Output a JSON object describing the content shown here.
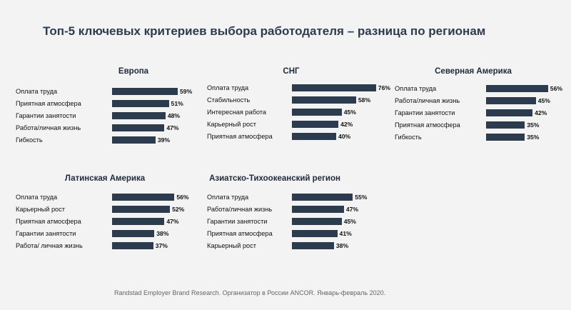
{
  "title": "Топ-5 ключевых критериев выбора работодателя – разница по регионам",
  "footer": "Randstad Employer Brand Research. Организатор в России ANCOR. Январь-февраль 2020.",
  "chart_data": [
    {
      "type": "bar",
      "title": "Европа",
      "categories": [
        "Оплата труда",
        "Приятная атмосфера",
        "Гарантии занятости",
        "Работа/личная жизнь",
        "Гибкость"
      ],
      "values": [
        59,
        51,
        48,
        47,
        39
      ],
      "value_labels": [
        "59%",
        "51%",
        "48%",
        "47%",
        "39%"
      ],
      "unit": "%",
      "orientation": "horizontal"
    },
    {
      "type": "bar",
      "title": "СНГ",
      "categories": [
        "Оплата труда",
        "Стабильность",
        "Интересная работа",
        "Карьерный рост",
        "Приятная атмосфера"
      ],
      "values": [
        76,
        58,
        45,
        42,
        40
      ],
      "value_labels": [
        "76%",
        "58%",
        "45%",
        "42%",
        "40%"
      ],
      "unit": "%",
      "orientation": "horizontal"
    },
    {
      "type": "bar",
      "title": "Северная Америка",
      "categories": [
        "Оплата труда",
        "Работа/личная жизнь",
        "Гарантии занятости",
        "Приятная атмосфера",
        "Гибкость"
      ],
      "values": [
        56,
        45,
        42,
        35,
        35
      ],
      "value_labels": [
        "56%",
        "45%",
        "42%",
        "35%",
        "35%"
      ],
      "unit": "%",
      "orientation": "horizontal"
    },
    {
      "type": "bar",
      "title": "Латинская Америка",
      "categories": [
        "Оплата труда",
        "Карьерный рост",
        "Приятная атмосфера",
        "Гарантии занятости",
        "Работа/ личная жизнь"
      ],
      "values": [
        56,
        52,
        47,
        38,
        37
      ],
      "value_labels": [
        "56%",
        "52%",
        "47%",
        "38%",
        "37%"
      ],
      "unit": "%",
      "orientation": "horizontal"
    },
    {
      "type": "bar",
      "title": "Азиатско-Тихоокеанский регион",
      "categories": [
        "Оплата труда",
        "Работа/личная жизнь",
        "Гарантии занятости",
        "Приятная атмосфера",
        "Карьерный рост"
      ],
      "values": [
        55,
        47,
        45,
        41,
        38
      ],
      "value_labels": [
        "55%",
        "47%",
        "45%",
        "41%",
        "38%"
      ],
      "unit": "%",
      "orientation": "horizontal"
    }
  ],
  "colors": {
    "bar": "#2d3b4e",
    "background": "#f3f3f3"
  }
}
